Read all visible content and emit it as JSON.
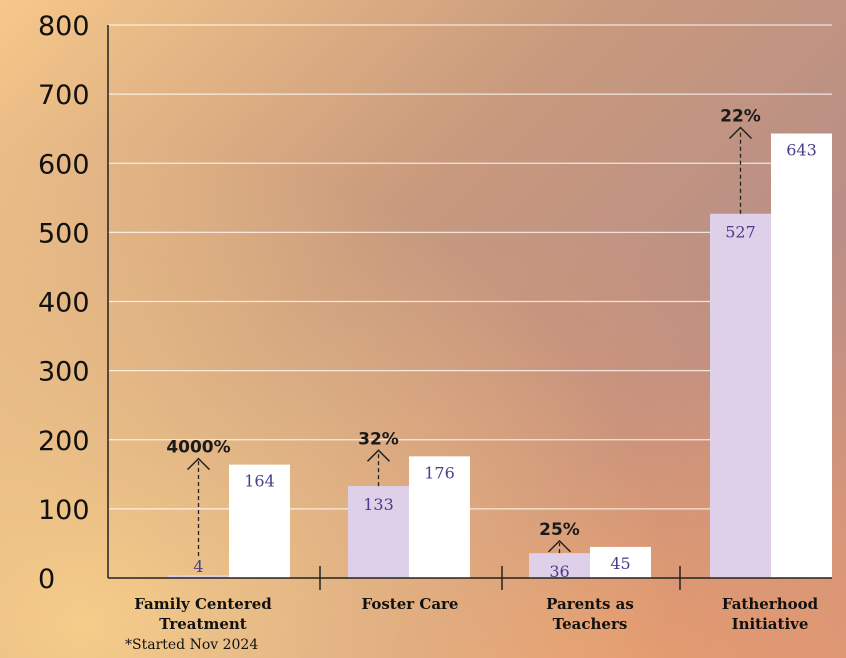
{
  "chart_data": {
    "type": "bar",
    "categories": [
      "Family Centered Treatment",
      "Foster Care",
      "Parents as Teachers",
      "Fatherhood Initiative"
    ],
    "series": [
      {
        "values": [
          4,
          133,
          36,
          527
        ],
        "color": "#ddd0e8"
      },
      {
        "values": [
          164,
          176,
          45,
          643
        ],
        "color": "#ffffff"
      }
    ],
    "change_labels": [
      "4000%",
      "32%",
      "25%",
      "22%"
    ],
    "footnote": "*Started Nov 2024",
    "ylim": [
      0,
      800
    ],
    "yticks": [
      0,
      100,
      200,
      300,
      400,
      500,
      600,
      700,
      800
    ],
    "grid": true,
    "value_label_color": "#4a3c8c"
  }
}
